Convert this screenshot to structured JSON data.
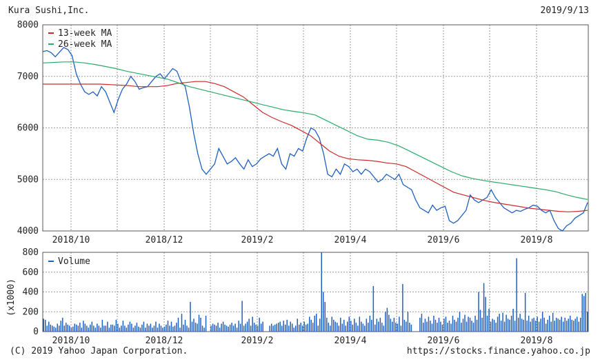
{
  "header": {
    "company": "Kura Sushi,Inc.",
    "date": "2019/9/13"
  },
  "footer": {
    "copyright": "(C) 2019 Yahoo Japan Corporation.",
    "url": "https://stocks.finance.yahoo.co.jp"
  },
  "colors": {
    "price": "#1f5fbf",
    "ma13": "#cc2a2a",
    "ma26": "#2aaa6a",
    "volume": "#1f5fbf",
    "grid": "#9a9a9a"
  },
  "chart_data": [
    {
      "type": "line",
      "x_tick_labels": [
        "2018/10",
        "2018/12",
        "2019/2",
        "2019/4",
        "2019/6",
        "2019/8"
      ],
      "ylim": [
        4000,
        8000
      ],
      "y_ticks": [
        4000,
        5000,
        6000,
        7000,
        8000
      ],
      "legend": {
        "placement": "top-left",
        "entries": [
          "13-week MA",
          "26-week MA"
        ]
      },
      "grid": true,
      "series": [
        {
          "name": "",
          "role": "price",
          "values": [
            7480,
            7500,
            7460,
            7380,
            7470,
            7560,
            7520,
            7400,
            7050,
            6850,
            6700,
            6650,
            6700,
            6620,
            6800,
            6700,
            6500,
            6300,
            6550,
            6750,
            6850,
            7000,
            6900,
            6750,
            6780,
            6800,
            6900,
            7000,
            7050,
            6950,
            7050,
            7150,
            7100,
            6900,
            6800,
            6400,
            5900,
            5500,
            5200,
            5100,
            5200,
            5300,
            5600,
            5450,
            5300,
            5350,
            5420,
            5300,
            5200,
            5380,
            5250,
            5300,
            5400,
            5450,
            5500,
            5450,
            5600,
            5300,
            5200,
            5500,
            5450,
            5600,
            5550,
            5800,
            6000,
            5950,
            5800,
            5500,
            5100,
            5050,
            5200,
            5100,
            5300,
            5250,
            5150,
            5200,
            5100,
            5200,
            5150,
            5050,
            4950,
            5000,
            5100,
            5050,
            5000,
            5100,
            4900,
            4850,
            4800,
            4600,
            4450,
            4400,
            4350,
            4500,
            4400,
            4450,
            4480,
            4200,
            4150,
            4200,
            4300,
            4400,
            4700,
            4600,
            4550,
            4600,
            4650,
            4800,
            4650,
            4550,
            4450,
            4400,
            4350,
            4400,
            4380,
            4420,
            4450,
            4500,
            4480,
            4400,
            4350,
            4400,
            4200,
            4050,
            4000,
            4100,
            4150,
            4250,
            4300,
            4350,
            4550
          ]
        },
        {
          "name": "13-week MA",
          "role": "ma13",
          "values": [
            6850,
            6850,
            6850,
            6850,
            6850,
            6850,
            6850,
            6840,
            6830,
            6820,
            6800,
            6800,
            6800,
            6820,
            6860,
            6880,
            6900,
            6900,
            6860,
            6800,
            6700,
            6600,
            6450,
            6300,
            6200,
            6120,
            6050,
            5950,
            5850,
            5700,
            5550,
            5450,
            5400,
            5380,
            5370,
            5350,
            5320,
            5300,
            5250,
            5150,
            5050,
            4950,
            4850,
            4750,
            4700,
            4650,
            4600,
            4560,
            4530,
            4500,
            4470,
            4440,
            4420,
            4400,
            4380,
            4370,
            4380,
            4400
          ]
        },
        {
          "name": "26-week MA",
          "role": "ma26",
          "values": [
            7260,
            7270,
            7280,
            7280,
            7260,
            7230,
            7190,
            7150,
            7100,
            7060,
            7020,
            6980,
            6940,
            6870,
            6800,
            6750,
            6700,
            6650,
            6600,
            6550,
            6500,
            6450,
            6400,
            6350,
            6320,
            6290,
            6250,
            6150,
            6050,
            5950,
            5850,
            5780,
            5760,
            5720,
            5650,
            5550,
            5450,
            5350,
            5250,
            5150,
            5070,
            5020,
            4980,
            4950,
            4920,
            4890,
            4860,
            4830,
            4800,
            4760,
            4700,
            4650,
            4610
          ]
        }
      ]
    },
    {
      "type": "bar",
      "x_tick_labels": [
        "2018/10",
        "2018/12",
        "2019/2",
        "2019/4",
        "2019/6",
        "2019/8"
      ],
      "ylim": [
        0,
        800
      ],
      "y_ticks": [
        0,
        200,
        400,
        600,
        800
      ],
      "ylabel": "(x1000)",
      "legend": {
        "placement": "top-left",
        "entries": [
          "Volume"
        ]
      },
      "grid": true,
      "series": [
        {
          "name": "Volume",
          "values": [
            130,
            120,
            60,
            100,
            70,
            60,
            50,
            40,
            80,
            60,
            110,
            140,
            60,
            90,
            70,
            60,
            40,
            50,
            80,
            70,
            60,
            90,
            40,
            110,
            80,
            60,
            40,
            70,
            100,
            60,
            40,
            80,
            60,
            40,
            120,
            60,
            60,
            100,
            40,
            70,
            70,
            60,
            120,
            80,
            40,
            60,
            110,
            60,
            40,
            70,
            100,
            80,
            40,
            60,
            90,
            50,
            40,
            70,
            100,
            40,
            80,
            60,
            80,
            40,
            60,
            100,
            40,
            80,
            60,
            40,
            50,
            70,
            110,
            60,
            100,
            50,
            60,
            90,
            140,
            40,
            180,
            70,
            120,
            60,
            40,
            300,
            100,
            130,
            90,
            80,
            170,
            140,
            60,
            40,
            160,
            0,
            0,
            60,
            80,
            70,
            60,
            90,
            40,
            80,
            100,
            70,
            60,
            50,
            70,
            90,
            60,
            80,
            40,
            110,
            80,
            310,
            60,
            80,
            100,
            130,
            60,
            150,
            90,
            70,
            60,
            140,
            80,
            100,
            0,
            0,
            0,
            60,
            80,
            60,
            70,
            80,
            90,
            100,
            60,
            110,
            70,
            120,
            60,
            100,
            80,
            40,
            60,
            130,
            70,
            90,
            60,
            100,
            70,
            80,
            150,
            120,
            90,
            160,
            180,
            60,
            130,
            800,
            400,
            300,
            140,
            90,
            60,
            150,
            120,
            100,
            90,
            60,
            140,
            80,
            120,
            60,
            100,
            150,
            110,
            70,
            130,
            90,
            60,
            150,
            100,
            80,
            60,
            130,
            90,
            160,
            120,
            460,
            70,
            130,
            100,
            140,
            90,
            60,
            200,
            240,
            170,
            130,
            100,
            140,
            90,
            80,
            150,
            60,
            480,
            120,
            100,
            200,
            90,
            70,
            0,
            0,
            0,
            0,
            140,
            180,
            90,
            130,
            100,
            150,
            110,
            80,
            160,
            120,
            90,
            140,
            100,
            70,
            130,
            150,
            90,
            110,
            80,
            160,
            120,
            100,
            140,
            200,
            90,
            130,
            170,
            100,
            150,
            140,
            110,
            90,
            160,
            120,
            400,
            220,
            140,
            490,
            350,
            160,
            230,
            100,
            130,
            120,
            90,
            150,
            180,
            110,
            190,
            100,
            170,
            130,
            120,
            160,
            230,
            110,
            740,
            140,
            180,
            130,
            120,
            390,
            110,
            160,
            100,
            130,
            140,
            110,
            150,
            100,
            130,
            200,
            140,
            80,
            120,
            160,
            100,
            190,
            110,
            140,
            130,
            120,
            150,
            100,
            140,
            110,
            130,
            160,
            120,
            110,
            130,
            150,
            100,
            140,
            380,
            360,
            390,
            200
          ]
        }
      ]
    }
  ]
}
